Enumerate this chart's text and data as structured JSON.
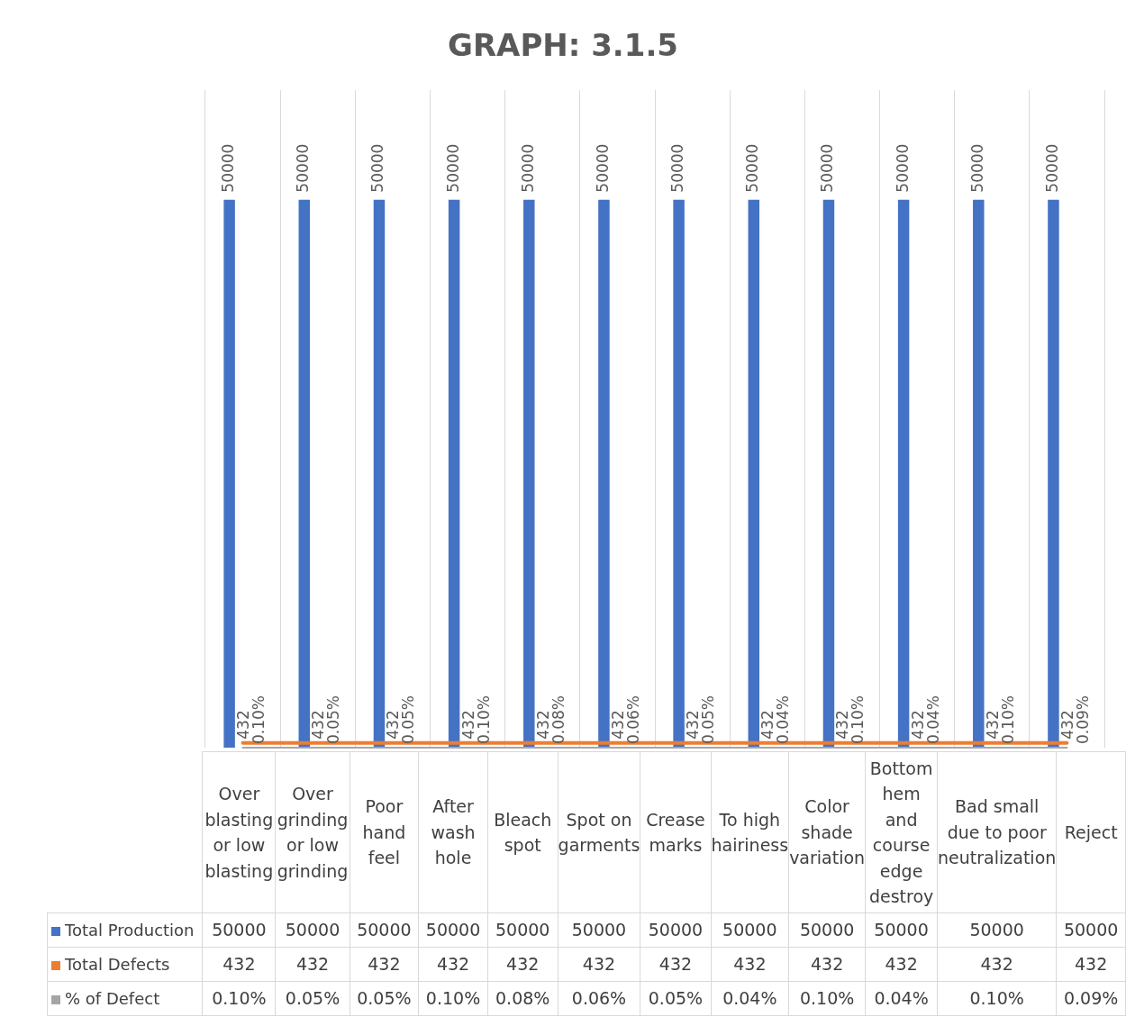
{
  "chart_data": {
    "type": "bar",
    "title": "GRAPH: 3.1.5",
    "categories": [
      "Over blasting or low blasting",
      "Over grinding or low grinding",
      "Poor hand feel",
      "After wash hole",
      "Bleach spot",
      "Spot on garments",
      "Crease marks",
      "To high hairiness",
      "Color shade variation",
      "Bottom hem and course edge destroy",
      "Bad small due to poor neutralization",
      "Reject"
    ],
    "series": [
      {
        "name": "Total Production",
        "color": "#4472c4",
        "values": [
          50000,
          50000,
          50000,
          50000,
          50000,
          50000,
          50000,
          50000,
          50000,
          50000,
          50000,
          50000
        ],
        "value_labels": [
          "50000",
          "50000",
          "50000",
          "50000",
          "50000",
          "50000",
          "50000",
          "50000",
          "50000",
          "50000",
          "50000",
          "50000"
        ]
      },
      {
        "name": "Total Defects",
        "type": "line",
        "color": "#ed7d31",
        "values": [
          432,
          432,
          432,
          432,
          432,
          432,
          432,
          432,
          432,
          432,
          432,
          432
        ],
        "value_labels": [
          "432",
          "432",
          "432",
          "432",
          "432",
          "432",
          "432",
          "432",
          "432",
          "432",
          "432",
          "432"
        ]
      },
      {
        "name": "% of Defect",
        "type": "line",
        "color": "#a5a5a5",
        "values": [
          0.1,
          0.05,
          0.05,
          0.1,
          0.08,
          0.06,
          0.05,
          0.04,
          0.1,
          0.04,
          0.1,
          0.09
        ],
        "value_labels": [
          "0.10%",
          "0.05%",
          "0.05%",
          "0.10%",
          "0.08%",
          "0.06%",
          "0.05%",
          "0.04%",
          "0.10%",
          "0.04%",
          "0.10%",
          "0.09%"
        ]
      }
    ],
    "ylim": [
      0,
      60000
    ],
    "tick_labels": "x",
    "grid": "x",
    "legend": "bottom left",
    "marker": "none",
    "data_labels": true
  }
}
